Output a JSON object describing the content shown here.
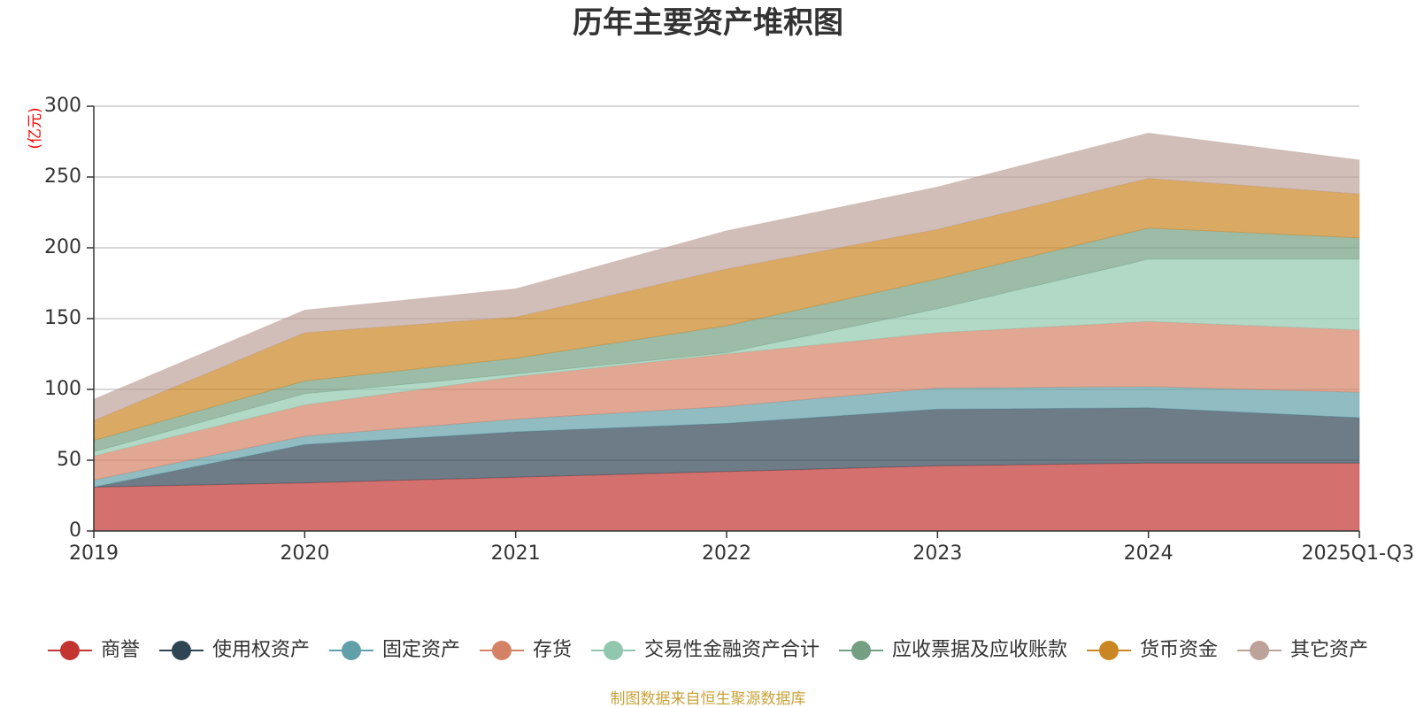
{
  "chart_data": {
    "type": "area",
    "stacked": true,
    "title": "历年主要资产堆积图",
    "unit_label": "(亿元)",
    "x": [
      "2019",
      "2020",
      "2021",
      "2022",
      "2023",
      "2024",
      "2025Q1-Q3"
    ],
    "ylim": [
      0,
      300
    ],
    "yticks": [
      0,
      50,
      100,
      150,
      200,
      250,
      300
    ],
    "grid": true,
    "legend_position": "bottom",
    "series": [
      {
        "name": "商誉",
        "color": "#c23531",
        "values": [
          31,
          34,
          38,
          42,
          46,
          48,
          48
        ]
      },
      {
        "name": "使用权资产",
        "color": "#2f4554",
        "values": [
          0,
          27,
          32,
          34,
          40,
          39,
          32
        ]
      },
      {
        "name": "固定资产",
        "color": "#61a0a8",
        "values": [
          5,
          6,
          9,
          12,
          15,
          15,
          18
        ]
      },
      {
        "name": "存货",
        "color": "#d48265",
        "values": [
          17,
          22,
          30,
          37,
          39,
          46,
          44
        ]
      },
      {
        "name": "交易性金融资产合计",
        "color": "#91c7ae",
        "values": [
          3,
          8,
          2,
          1,
          17,
          44,
          50
        ]
      },
      {
        "name": "应收票据及应收账款",
        "color": "#749f83",
        "values": [
          8,
          9,
          11,
          19,
          21,
          22,
          15
        ]
      },
      {
        "name": "货币资金",
        "color": "#ca8622",
        "values": [
          14,
          34,
          29,
          40,
          35,
          35,
          31
        ]
      },
      {
        "name": "其它资产",
        "color": "#bda29a",
        "values": [
          15,
          16,
          20,
          27,
          30,
          32,
          24
        ]
      }
    ],
    "source_note": "制图数据来自恒生聚源数据库"
  },
  "colors": {
    "unit_label": "#ff0000",
    "source_note": "#c8a23a",
    "axis": "#333333",
    "grid": "#cccccc"
  }
}
